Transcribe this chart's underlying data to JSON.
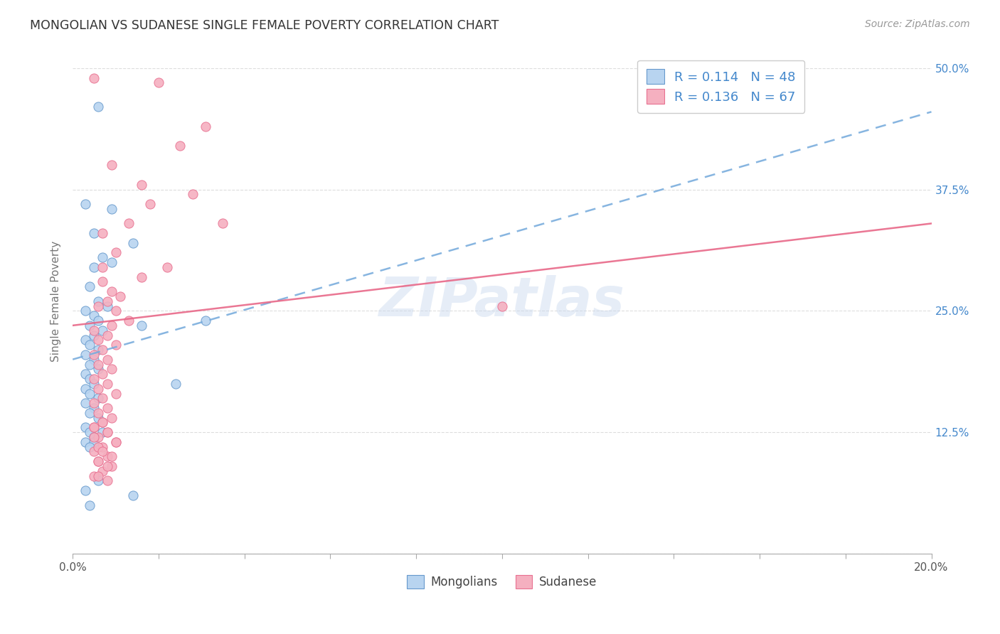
{
  "title": "MONGOLIAN VS SUDANESE SINGLE FEMALE POVERTY CORRELATION CHART",
  "source": "Source: ZipAtlas.com",
  "ylabel": "Single Female Poverty",
  "xlim": [
    0.0,
    0.2
  ],
  "ylim": [
    0.0,
    0.52
  ],
  "yticks": [
    0.0,
    0.125,
    0.25,
    0.375,
    0.5
  ],
  "ytick_labels_right": [
    "",
    "12.5%",
    "25.0%",
    "37.5%",
    "50.0%"
  ],
  "xticks": [
    0.0,
    0.02,
    0.04,
    0.06,
    0.08,
    0.1,
    0.12,
    0.14,
    0.16,
    0.18,
    0.2
  ],
  "xtick_labels": [
    "0.0%",
    "",
    "",
    "",
    "",
    "",
    "",
    "",
    "",
    "",
    "20.0%"
  ],
  "mongolian_fill": "#b8d4f0",
  "mongolian_edge": "#6699cc",
  "sudanese_fill": "#f5b0c0",
  "sudanese_edge": "#e87090",
  "mongolian_line_color": "#7aaddd",
  "sudanese_line_color": "#e86888",
  "r_mongolian": 0.114,
  "n_mongolian": 48,
  "r_sudanese": 0.136,
  "n_sudanese": 67,
  "legend_text_color": "#4488cc",
  "title_color": "#333333",
  "watermark": "ZIPatlas",
  "background_color": "#ffffff",
  "grid_color": "#dddddd",
  "blue_line_x0": 0.0,
  "blue_line_y0": 0.2,
  "blue_line_x1": 0.2,
  "blue_line_y1": 0.455,
  "pink_line_x0": 0.0,
  "pink_line_y0": 0.235,
  "pink_line_x1": 0.2,
  "pink_line_y1": 0.34,
  "mongolians_scatter_x": [
    0.006,
    0.014,
    0.005,
    0.024,
    0.031,
    0.009,
    0.016,
    0.003,
    0.005,
    0.007,
    0.009,
    0.004,
    0.006,
    0.008,
    0.003,
    0.005,
    0.006,
    0.004,
    0.007,
    0.005,
    0.003,
    0.004,
    0.006,
    0.003,
    0.005,
    0.004,
    0.006,
    0.003,
    0.004,
    0.005,
    0.003,
    0.004,
    0.006,
    0.003,
    0.005,
    0.004,
    0.006,
    0.003,
    0.004,
    0.005,
    0.007,
    0.003,
    0.005,
    0.004,
    0.006,
    0.003,
    0.014,
    0.004
  ],
  "mongolians_scatter_y": [
    0.46,
    0.32,
    0.295,
    0.175,
    0.24,
    0.355,
    0.235,
    0.36,
    0.33,
    0.305,
    0.3,
    0.275,
    0.26,
    0.255,
    0.25,
    0.245,
    0.24,
    0.235,
    0.23,
    0.225,
    0.22,
    0.215,
    0.21,
    0.205,
    0.2,
    0.195,
    0.19,
    0.185,
    0.18,
    0.175,
    0.17,
    0.165,
    0.16,
    0.155,
    0.15,
    0.145,
    0.14,
    0.13,
    0.125,
    0.12,
    0.125,
    0.115,
    0.115,
    0.11,
    0.075,
    0.065,
    0.06,
    0.05
  ],
  "sudanese_scatter_x": [
    0.005,
    0.02,
    0.031,
    0.025,
    0.009,
    0.016,
    0.028,
    0.018,
    0.035,
    0.013,
    0.007,
    0.01,
    0.022,
    0.016,
    0.007,
    0.009,
    0.011,
    0.008,
    0.006,
    0.01,
    0.013,
    0.007,
    0.009,
    0.005,
    0.008,
    0.006,
    0.01,
    0.007,
    0.005,
    0.008,
    0.006,
    0.009,
    0.007,
    0.005,
    0.008,
    0.006,
    0.01,
    0.007,
    0.005,
    0.008,
    0.006,
    0.009,
    0.007,
    0.005,
    0.008,
    0.006,
    0.01,
    0.007,
    0.005,
    0.008,
    0.006,
    0.009,
    0.007,
    0.1,
    0.005,
    0.008,
    0.006,
    0.01,
    0.007,
    0.005,
    0.008,
    0.006,
    0.009,
    0.007,
    0.005,
    0.008,
    0.006
  ],
  "sudanese_scatter_y": [
    0.49,
    0.485,
    0.44,
    0.42,
    0.4,
    0.38,
    0.37,
    0.36,
    0.34,
    0.34,
    0.33,
    0.31,
    0.295,
    0.285,
    0.28,
    0.27,
    0.265,
    0.26,
    0.255,
    0.25,
    0.24,
    0.295,
    0.235,
    0.23,
    0.225,
    0.22,
    0.215,
    0.21,
    0.205,
    0.2,
    0.195,
    0.19,
    0.185,
    0.18,
    0.175,
    0.17,
    0.165,
    0.16,
    0.155,
    0.15,
    0.145,
    0.14,
    0.135,
    0.13,
    0.125,
    0.12,
    0.115,
    0.11,
    0.105,
    0.1,
    0.095,
    0.09,
    0.085,
    0.255,
    0.08,
    0.075,
    0.11,
    0.115,
    0.105,
    0.13,
    0.125,
    0.095,
    0.1,
    0.135,
    0.12,
    0.09,
    0.08
  ]
}
